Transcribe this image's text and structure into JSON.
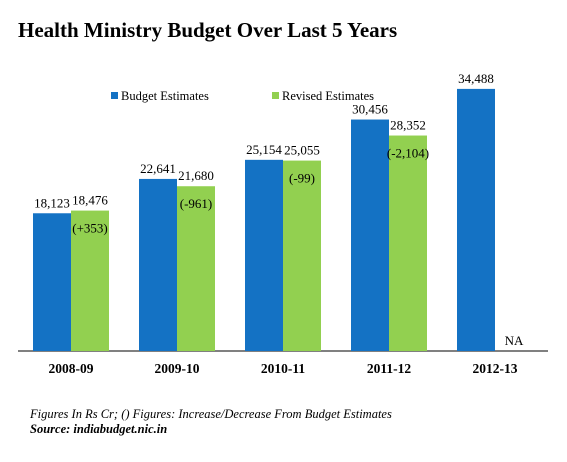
{
  "chart_data": {
    "type": "bar",
    "title": "Health Ministry Budget Over Last 5 Years",
    "categories": [
      "2008-09",
      "2009-10",
      "2010-11",
      "2011-12",
      "2012-13"
    ],
    "series": [
      {
        "name": "Budget Estimates",
        "color": "#1472c4",
        "values": [
          18123,
          22641,
          25154,
          30456,
          34488
        ],
        "value_labels": [
          "18,123",
          "22,641",
          "25,154",
          "30,456",
          "34,488"
        ]
      },
      {
        "name": "Revised Estimates",
        "color": "#92d050",
        "values": [
          18476,
          21680,
          25055,
          28352,
          null
        ],
        "value_labels": [
          "18,476",
          "21,680",
          "25,055",
          "28,352",
          "NA"
        ]
      }
    ],
    "differences": [
      "(+353)",
      "(-961)",
      "(-99)",
      "(-2,104)",
      null
    ],
    "ylim": [
      0,
      40000
    ],
    "grid": false,
    "legend_position": "top-left"
  },
  "footnote": {
    "note": "Figures In Rs Cr; () Figures: Increase/Decrease From Budget Estimates",
    "source": "Source: indiabudget.nic.in"
  }
}
